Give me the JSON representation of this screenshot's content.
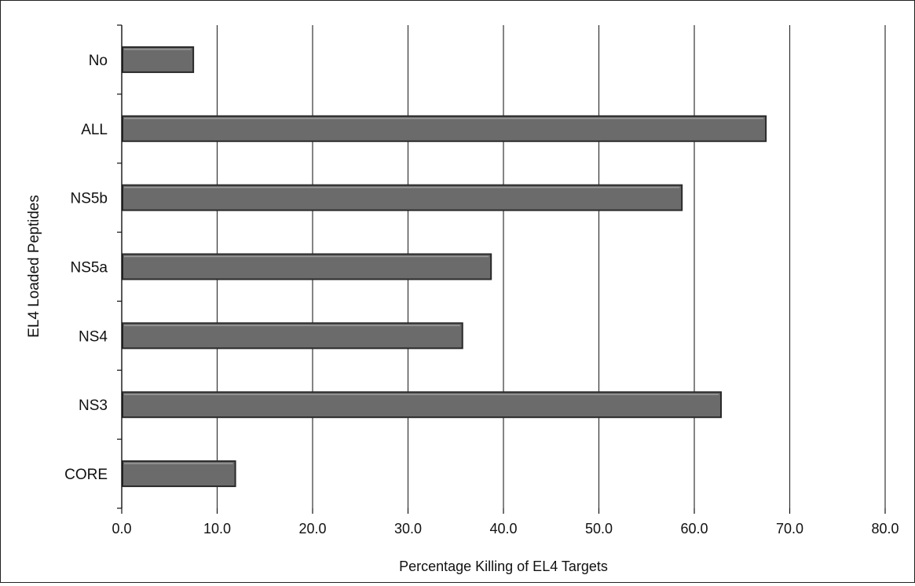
{
  "chart_data": {
    "type": "bar",
    "orientation": "horizontal",
    "title": "",
    "xlabel": "Percentage Killing of EL4 Targets",
    "ylabel": "EL4 Loaded Peptides",
    "categories": [
      "No",
      "ALL",
      "NS5b",
      "NS5a",
      "NS4",
      "NS3",
      "CORE"
    ],
    "values": [
      7.5,
      67.5,
      58.7,
      38.7,
      35.7,
      62.8,
      11.9
    ],
    "xlim": [
      0,
      80
    ],
    "xticks": [
      "0.0",
      "10.0",
      "20.0",
      "30.0",
      "40.0",
      "50.0",
      "60.0",
      "70.0",
      "80.0"
    ],
    "grid": "vertical",
    "legend": "none",
    "colors": {
      "bar_fill": "#6b6b6b",
      "bar_stroke": "#2a2a2a",
      "bar_highlight": "#9a9a9a",
      "gridline": "#333333",
      "axis": "#111111"
    }
  }
}
